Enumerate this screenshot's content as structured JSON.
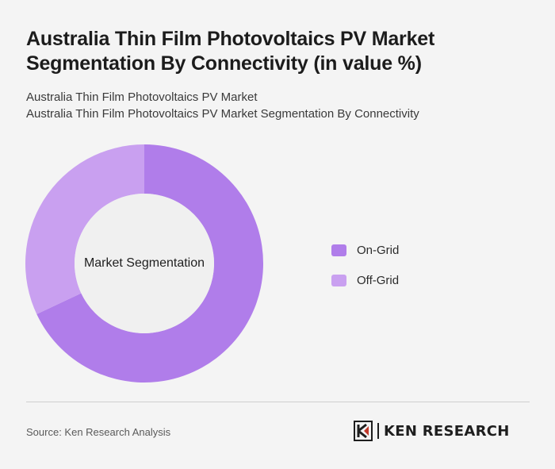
{
  "title": "Australia Thin Film Photovoltaics PV Market Segmentation By Connectivity (in value %)",
  "subtitle_line1": "Australia Thin Film Photovoltaics PV Market",
  "subtitle_line2": "Australia Thin Film Photovoltaics PV Market Segmentation By Connectivity",
  "source": "Source: Ken Research Analysis",
  "logo_text": "KEN RESEARCH",
  "colors": {
    "on_grid": "#b07dea",
    "off_grid": "#c9a0f0",
    "center": "#f0f0f0",
    "background": "#f4f4f4"
  },
  "chart_data": {
    "type": "pie",
    "variant": "donut",
    "center_label": "Market Segmentation",
    "categories": [
      "On-Grid",
      "Off-Grid"
    ],
    "values": [
      68,
      32
    ],
    "legend_position": "right"
  }
}
